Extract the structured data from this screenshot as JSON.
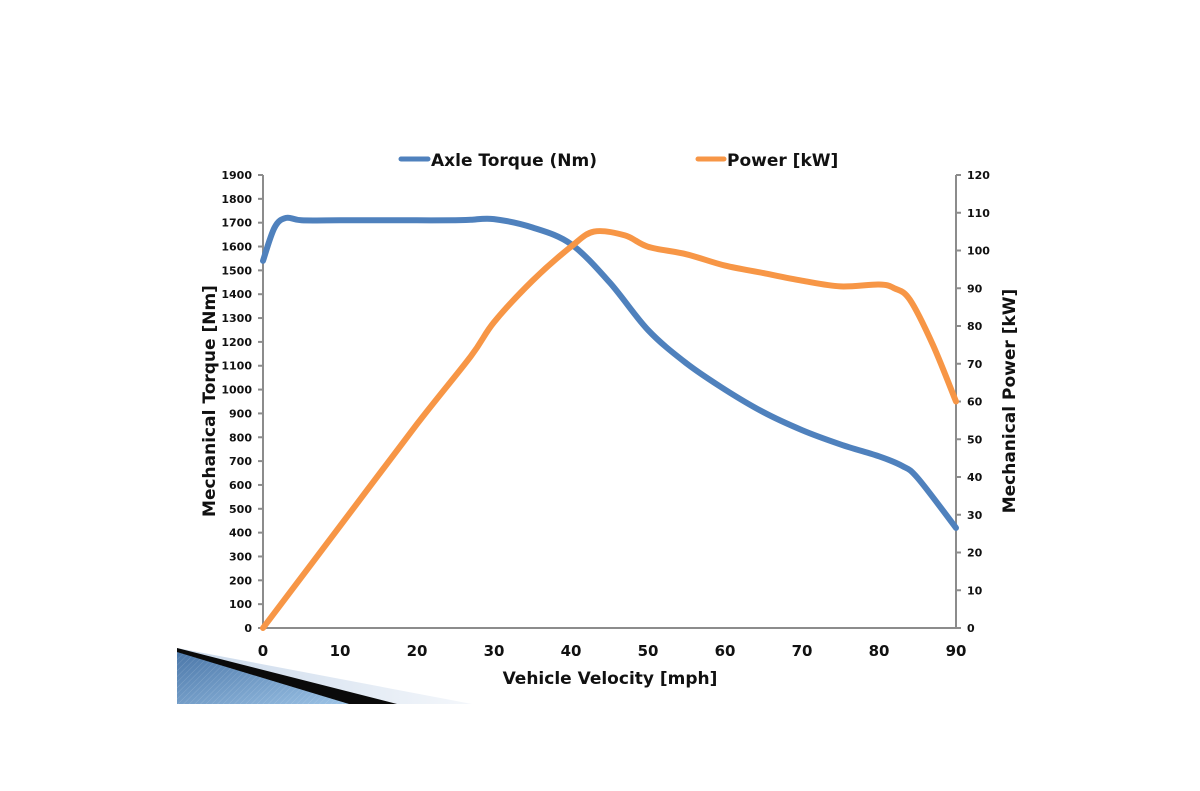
{
  "chart_data": {
    "type": "line",
    "title": "",
    "xlabel": "Vehicle Velocity [mph]",
    "ylabel": "Mechanical Torque [Nm]",
    "y2label": "Mechanical Power [kW]",
    "xlim": [
      0,
      90
    ],
    "ylim": [
      0,
      1900
    ],
    "y2lim": [
      0,
      120
    ],
    "x_ticks": [
      0,
      10,
      20,
      30,
      40,
      50,
      60,
      70,
      80,
      90
    ],
    "y_ticks": [
      0,
      100,
      200,
      300,
      400,
      500,
      600,
      700,
      800,
      900,
      1000,
      1100,
      1200,
      1300,
      1400,
      1500,
      1600,
      1700,
      1800,
      1900
    ],
    "y2_ticks": [
      0,
      10,
      20,
      30,
      40,
      50,
      60,
      70,
      80,
      90,
      100,
      110,
      120
    ],
    "grid": false,
    "legend_position": "top",
    "series": [
      {
        "name": "Axle Torque (Nm)",
        "axis": "left",
        "color": "#4f81bd",
        "x": [
          0,
          1.5,
          3,
          5,
          10,
          15,
          20,
          25,
          27,
          30,
          35,
          40,
          45,
          50,
          55,
          60,
          65,
          70,
          75,
          80,
          83,
          85,
          90
        ],
        "y": [
          1540,
          1680,
          1720,
          1710,
          1710,
          1710,
          1710,
          1710,
          1712,
          1715,
          1680,
          1610,
          1450,
          1250,
          1110,
          1000,
          905,
          830,
          770,
          720,
          680,
          630,
          420
        ]
      },
      {
        "name": "Power [kW]",
        "axis": "right",
        "color": "#f79646",
        "x": [
          0,
          10,
          20,
          27,
          30,
          35,
          40,
          43,
          47,
          50,
          55,
          60,
          65,
          70,
          75,
          80,
          82,
          84,
          87,
          90
        ],
        "y": [
          0,
          27,
          54,
          72,
          81,
          92,
          101,
          105,
          104,
          101,
          99,
          96,
          94,
          92,
          90.5,
          91,
          90,
          87,
          75,
          60
        ]
      }
    ]
  }
}
